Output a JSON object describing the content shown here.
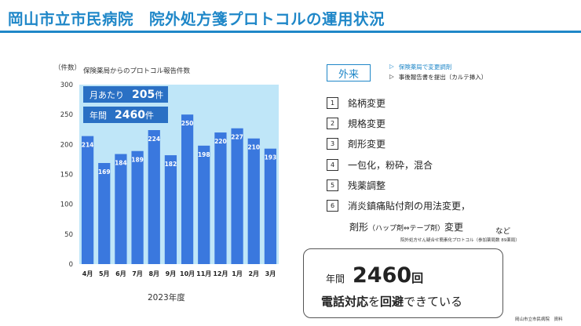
{
  "header": {
    "title": "岡山市立市民病院　院外処方箋プロトコルの運用状況"
  },
  "chart_data": {
    "type": "bar",
    "title": "保険薬局からのプロトコル報告件数",
    "ylabel": "（件数）",
    "xlabel": "2023年度",
    "categories": [
      "4月",
      "5月",
      "6月",
      "7月",
      "8月",
      "9月",
      "10月",
      "11月",
      "12月",
      "1月",
      "2月",
      "3月"
    ],
    "values": [
      214,
      169,
      184,
      189,
      224,
      182,
      250,
      198,
      220,
      227,
      210,
      193
    ],
    "ylim": [
      0,
      300
    ],
    "yticks": [
      0,
      50,
      100,
      150,
      200,
      250,
      300
    ],
    "bar_color": "#3a78de",
    "plot_bg": "#bfe6f8",
    "data_labels": true,
    "grid": false
  },
  "stats": {
    "monthly_label": "月あたり",
    "monthly_value": "205",
    "monthly_unit": "件",
    "annual_label": "年間",
    "annual_value": "2460",
    "annual_unit": "件"
  },
  "right": {
    "gairai": "外来",
    "notes": [
      {
        "marker": "▷",
        "text": "保険薬局で変更調剤"
      },
      {
        "marker": "▷",
        "text": "事後報告書を提出（カルテ挿入）"
      }
    ],
    "items": [
      {
        "num": "1",
        "text": "銘柄変更"
      },
      {
        "num": "2",
        "text": "規格変更"
      },
      {
        "num": "3",
        "text": "剤形変更"
      },
      {
        "num": "4",
        "text": "一包化，粉砕，混合"
      },
      {
        "num": "5",
        "text": "残薬調整"
      },
      {
        "num": "6",
        "text": "消炎鎮痛貼付剤の用法変更，"
      }
    ],
    "item6_cont_pre": "剤形",
    "item6_cont_paren": "（ハップ剤⇔テープ剤）",
    "item6_cont_post": "変更",
    "nado": "など",
    "source_note": "院外処方せん疑合せ簡素化プロトコル（参加薬局数 89薬局）"
  },
  "callout": {
    "line1_prefix": "年間",
    "line1_number": "2460",
    "line1_unit": "回",
    "line2_bold1": "電話対応",
    "line2_mid": "を",
    "line2_bold2": "回避",
    "line2_end": "できている"
  },
  "footer": {
    "credit": "岡山市立市民病院　資料"
  },
  "colors": {
    "accent": "#1f87c8",
    "bar": "#3a78de",
    "stat_box": "#2a70c4"
  }
}
